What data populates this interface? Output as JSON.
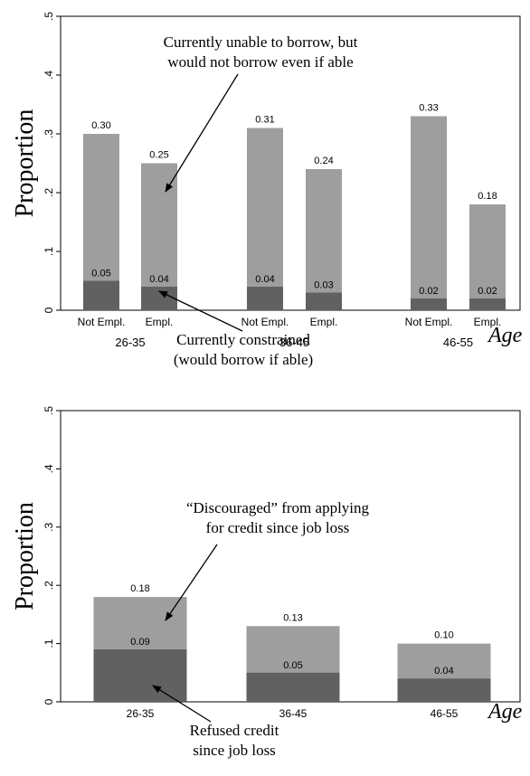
{
  "colors": {
    "light_bar": "#9e9e9e",
    "dark_bar": "#616161",
    "axis": "#000000"
  },
  "chart_data": [
    {
      "type": "bar",
      "stacked": "overlay",
      "ylabel": "Proportion",
      "xlabel": "Age",
      "ylim": [
        0,
        0.5
      ],
      "y_ticks": [
        0,
        0.1,
        0.2,
        0.3,
        0.4,
        0.5
      ],
      "y_tick_labels": [
        "0",
        ".1",
        ".2",
        ".3",
        ".4",
        ".5"
      ],
      "groups": [
        "26-35",
        "36-45",
        "46-55"
      ],
      "bars": [
        {
          "group": "26-35",
          "label": "Not Empl.",
          "total": 0.3,
          "total_label": "0.30",
          "constrained": 0.05,
          "constrained_label": "0.05"
        },
        {
          "group": "26-35",
          "label": "Empl.",
          "total": 0.25,
          "total_label": "0.25",
          "constrained": 0.04,
          "constrained_label": "0.04"
        },
        {
          "group": "36-45",
          "label": "Not Empl.",
          "total": 0.31,
          "total_label": "0.31",
          "constrained": 0.04,
          "constrained_label": "0.04"
        },
        {
          "group": "36-45",
          "label": "Empl.",
          "total": 0.24,
          "total_label": "0.24",
          "constrained": 0.03,
          "constrained_label": "0.03"
        },
        {
          "group": "46-55",
          "label": "Not Empl.",
          "total": 0.33,
          "total_label": "0.33",
          "constrained": 0.02,
          "constrained_label": "0.02"
        },
        {
          "group": "46-55",
          "label": "Empl.",
          "total": 0.18,
          "total_label": "0.18",
          "constrained": 0.02,
          "constrained_label": "0.02"
        }
      ],
      "annotations": {
        "light": [
          "Currently unable to borrow, but",
          "would not borrow even if able"
        ],
        "dark": [
          "Currently constrained",
          "(would borrow if able)"
        ]
      }
    },
    {
      "type": "bar",
      "stacked": "overlay",
      "ylabel": "Proportion",
      "xlabel": "Age",
      "ylim": [
        0,
        0.5
      ],
      "y_ticks": [
        0,
        0.1,
        0.2,
        0.3,
        0.4,
        0.5
      ],
      "y_tick_labels": [
        "0",
        ".1",
        ".2",
        ".3",
        ".4",
        ".5"
      ],
      "bars": [
        {
          "label": "26-35",
          "total": 0.18,
          "total_label": "0.18",
          "refused": 0.09,
          "refused_label": "0.09"
        },
        {
          "label": "36-45",
          "total": 0.13,
          "total_label": "0.13",
          "refused": 0.05,
          "refused_label": "0.05"
        },
        {
          "label": "46-55",
          "total": 0.1,
          "total_label": "0.10",
          "refused": 0.04,
          "refused_label": "0.04"
        }
      ],
      "annotations": {
        "light": [
          "“Discouraged” from applying",
          "for credit since job loss"
        ],
        "dark": [
          "Refused credit",
          "since job loss"
        ]
      }
    }
  ]
}
